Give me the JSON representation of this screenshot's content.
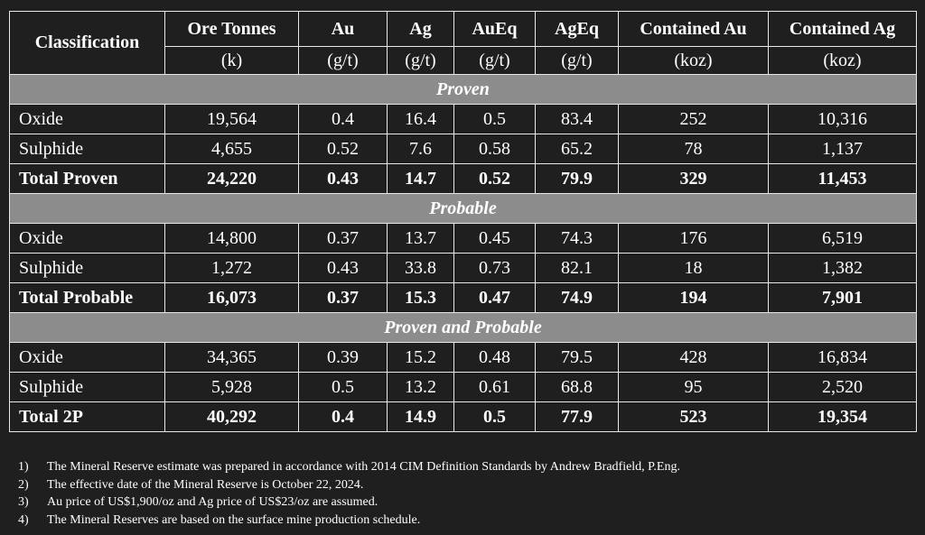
{
  "header": {
    "classification": "Classification",
    "columns": [
      {
        "name": "Ore Tonnes",
        "unit": "(k)"
      },
      {
        "name": "Au",
        "unit": "(g/t)"
      },
      {
        "name": "Ag",
        "unit": "(g/t)"
      },
      {
        "name": "AuEq",
        "unit": "(g/t)"
      },
      {
        "name": "AgEq",
        "unit": "(g/t)"
      },
      {
        "name": "Contained Au",
        "unit": "(koz)"
      },
      {
        "name": "Contained Ag",
        "unit": "(koz)"
      }
    ]
  },
  "sections": [
    {
      "title": "Proven",
      "rows": [
        [
          "Oxide",
          "19,564",
          "0.4",
          "16.4",
          "0.5",
          "83.4",
          "252",
          "10,316"
        ],
        [
          "Sulphide",
          "4,655",
          "0.52",
          "7.6",
          "0.58",
          "65.2",
          "78",
          "1,137"
        ]
      ],
      "total": [
        "Total Proven",
        "24,220",
        "0.43",
        "14.7",
        "0.52",
        "79.9",
        "329",
        "11,453"
      ]
    },
    {
      "title": "Probable",
      "rows": [
        [
          "Oxide",
          "14,800",
          "0.37",
          "13.7",
          "0.45",
          "74.3",
          "176",
          "6,519"
        ],
        [
          "Sulphide",
          "1,272",
          "0.43",
          "33.8",
          "0.73",
          "82.1",
          "18",
          "1,382"
        ]
      ],
      "total": [
        "Total Probable",
        "16,073",
        "0.37",
        "15.3",
        "0.47",
        "74.9",
        "194",
        "7,901"
      ]
    },
    {
      "title": "Proven and Probable",
      "rows": [
        [
          "Oxide",
          "34,365",
          "0.39",
          "15.2",
          "0.48",
          "79.5",
          "428",
          "16,834"
        ],
        [
          "Sulphide",
          "5,928",
          "0.5",
          "13.2",
          "0.61",
          "68.8",
          "95",
          "2,520"
        ]
      ],
      "total": [
        "Total 2P",
        "40,292",
        "0.4",
        "14.9",
        "0.5",
        "77.9",
        "523",
        "19,354"
      ]
    }
  ],
  "notes": [
    {
      "number": "1)",
      "text": "The Mineral Reserve estimate was prepared in accordance with 2014 CIM Definition Standards by Andrew Bradfield, P.Eng."
    },
    {
      "number": "2)",
      "text": "The effective date of the Mineral Reserve is October 22, 2024."
    },
    {
      "number": "3)",
      "text": "Au price of US$1,900/oz and Ag price of US$23/oz are assumed."
    },
    {
      "number": "4)",
      "text": "The Mineral Reserves are based on the surface mine production schedule."
    }
  ]
}
